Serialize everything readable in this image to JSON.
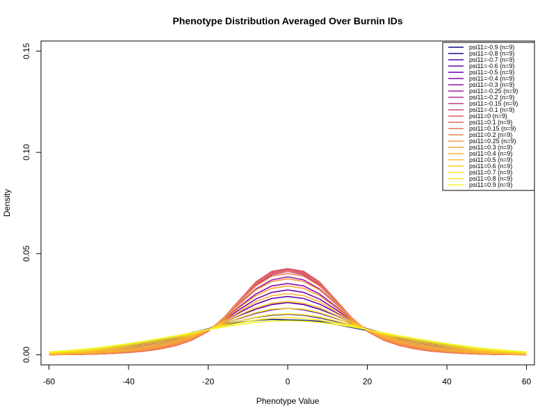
{
  "chart_data": {
    "type": "line",
    "title": "Phenotype Distribution Averaged Over Burnin IDs",
    "xlabel": "Phenotype Value",
    "ylabel": "Density",
    "xlim": [
      -62,
      62
    ],
    "ylim": [
      -0.005,
      0.155
    ],
    "xticks": [
      -60,
      -40,
      -20,
      0,
      20,
      40,
      60
    ],
    "xtick_labels": [
      "-60",
      "-40",
      "-20",
      "0",
      "20",
      "40",
      "60"
    ],
    "yticks": [
      0.0,
      0.05,
      0.1,
      0.15
    ],
    "ytick_labels": [
      "0.00",
      "0.05",
      "0.10",
      "0.15"
    ],
    "grid": false,
    "legend_position": "top-right",
    "x": [
      -60,
      -56,
      -52,
      -48,
      -44,
      -40,
      -36,
      -32,
      -28,
      -24,
      -20,
      -16,
      -12,
      -8,
      -4,
      0,
      4,
      8,
      12,
      16,
      20,
      24,
      28,
      32,
      36,
      40,
      44,
      48,
      52,
      56,
      60
    ],
    "series": [
      {
        "name": "psi11=-0.9 (n=9)",
        "color": "#0d0887",
        "values": [
          0.0012,
          0.0018,
          0.0022,
          0.003,
          0.004,
          0.0052,
          0.006,
          0.0075,
          0.009,
          0.011,
          0.0125,
          0.0145,
          0.016,
          0.017,
          0.0175,
          0.0172,
          0.017,
          0.0165,
          0.015,
          0.0135,
          0.012,
          0.0105,
          0.009,
          0.0075,
          0.0062,
          0.005,
          0.004,
          0.003,
          0.0022,
          0.0016,
          0.0012
        ]
      },
      {
        "name": "psi11=-0.8 (n=9)",
        "color": "#2c0594",
        "values": [
          0.001,
          0.0015,
          0.002,
          0.0028,
          0.0038,
          0.0048,
          0.0058,
          0.0072,
          0.0088,
          0.0108,
          0.0128,
          0.015,
          0.0168,
          0.0185,
          0.0195,
          0.02,
          0.0195,
          0.0182,
          0.0165,
          0.0148,
          0.0128,
          0.0108,
          0.009,
          0.0072,
          0.0058,
          0.0046,
          0.0036,
          0.0027,
          0.002,
          0.0014,
          0.001
        ]
      },
      {
        "name": "psi11=-0.7 (n=9)",
        "color": "#43039e",
        "values": [
          0.0008,
          0.0012,
          0.0017,
          0.0024,
          0.0033,
          0.0044,
          0.0055,
          0.0068,
          0.0084,
          0.0104,
          0.0128,
          0.0155,
          0.018,
          0.0205,
          0.0222,
          0.023,
          0.0222,
          0.0205,
          0.018,
          0.0155,
          0.0128,
          0.0104,
          0.0084,
          0.0068,
          0.0055,
          0.0044,
          0.0033,
          0.0024,
          0.0017,
          0.0012,
          0.0008
        ]
      },
      {
        "name": "psi11=-0.6 (n=9)",
        "color": "#5901a5",
        "values": [
          0.0006,
          0.001,
          0.0014,
          0.002,
          0.0028,
          0.0038,
          0.0049,
          0.0062,
          0.0078,
          0.01,
          0.0128,
          0.016,
          0.0195,
          0.0225,
          0.0248,
          0.0258,
          0.0248,
          0.0225,
          0.0195,
          0.016,
          0.0128,
          0.01,
          0.0078,
          0.0062,
          0.0049,
          0.0038,
          0.0028,
          0.002,
          0.0014,
          0.001,
          0.0006
        ]
      },
      {
        "name": "psi11=-0.5 (n=9)",
        "color": "#6a00a8",
        "values": [
          0.0004,
          0.0007,
          0.0011,
          0.0016,
          0.0023,
          0.0032,
          0.0042,
          0.0055,
          0.0072,
          0.0095,
          0.0125,
          0.0165,
          0.021,
          0.025,
          0.0278,
          0.0288,
          0.0278,
          0.025,
          0.021,
          0.0165,
          0.0125,
          0.0095,
          0.0072,
          0.0055,
          0.0042,
          0.0032,
          0.0023,
          0.0016,
          0.0011,
          0.0007,
          0.0004
        ]
      },
      {
        "name": "psi11=-0.4 (n=9)",
        "color": "#7e03a8",
        "values": [
          0.0003,
          0.0005,
          0.0008,
          0.0012,
          0.0018,
          0.0026,
          0.0036,
          0.0049,
          0.0066,
          0.009,
          0.0124,
          0.017,
          0.0225,
          0.0275,
          0.0308,
          0.032,
          0.0308,
          0.0275,
          0.0225,
          0.017,
          0.0124,
          0.009,
          0.0066,
          0.0049,
          0.0036,
          0.0026,
          0.0018,
          0.0012,
          0.0008,
          0.0005,
          0.0003
        ]
      },
      {
        "name": "psi11=-0.3 (n=9)",
        "color": "#8f0da4",
        "values": [
          0.0002,
          0.0003,
          0.0006,
          0.0009,
          0.0014,
          0.0021,
          0.003,
          0.0043,
          0.006,
          0.0085,
          0.0122,
          0.0175,
          0.024,
          0.03,
          0.034,
          0.0352,
          0.034,
          0.03,
          0.024,
          0.0175,
          0.0122,
          0.0085,
          0.006,
          0.0043,
          0.003,
          0.0021,
          0.0014,
          0.0009,
          0.0006,
          0.0003,
          0.0002
        ]
      },
      {
        "name": "psi11=-0.25 (n=9)",
        "color": "#a01a9c",
        "values": [
          0.0001,
          0.0002,
          0.0004,
          0.0007,
          0.0011,
          0.0017,
          0.0025,
          0.0037,
          0.0054,
          0.008,
          0.012,
          0.018,
          0.0255,
          0.0325,
          0.037,
          0.0385,
          0.037,
          0.0325,
          0.0255,
          0.018,
          0.012,
          0.008,
          0.0054,
          0.0037,
          0.0025,
          0.0017,
          0.0011,
          0.0007,
          0.0004,
          0.0002,
          0.0001
        ]
      },
      {
        "name": "psi11=-0.2 (n=9)",
        "color": "#b12a90",
        "values": [
          0.0001,
          0.0001,
          0.0003,
          0.0005,
          0.0009,
          0.0014,
          0.0021,
          0.0032,
          0.0049,
          0.0076,
          0.0118,
          0.0182,
          0.0265,
          0.0345,
          0.0395,
          0.0412,
          0.0395,
          0.0345,
          0.0265,
          0.0182,
          0.0118,
          0.0076,
          0.0049,
          0.0032,
          0.0021,
          0.0014,
          0.0009,
          0.0005,
          0.0003,
          0.0001,
          0.0001
        ]
      },
      {
        "name": "psi11=-0.15 (n=9)",
        "color": "#bf3984",
        "values": [
          0.0,
          0.0001,
          0.0002,
          0.0004,
          0.0007,
          0.0012,
          0.0019,
          0.003,
          0.0047,
          0.0074,
          0.0117,
          0.0183,
          0.027,
          0.0355,
          0.0405,
          0.042,
          0.0405,
          0.0355,
          0.027,
          0.0183,
          0.0117,
          0.0074,
          0.0047,
          0.003,
          0.0019,
          0.0012,
          0.0007,
          0.0004,
          0.0002,
          0.0001,
          0.0
        ]
      },
      {
        "name": "psi11=-0.1 (n=9)",
        "color": "#cc4778",
        "values": [
          0.0,
          0.0001,
          0.0002,
          0.0004,
          0.0007,
          0.0011,
          0.0018,
          0.0029,
          0.0046,
          0.0073,
          0.0116,
          0.0184,
          0.0272,
          0.0358,
          0.041,
          0.0425,
          0.041,
          0.0358,
          0.0272,
          0.0184,
          0.0116,
          0.0073,
          0.0046,
          0.0029,
          0.0018,
          0.0011,
          0.0007,
          0.0004,
          0.0002,
          0.0001,
          0.0
        ]
      },
      {
        "name": "psi11=0 (n=9)",
        "color": "#d8576b",
        "values": [
          0.0,
          0.0001,
          0.0002,
          0.0004,
          0.0007,
          0.0011,
          0.0018,
          0.0029,
          0.0046,
          0.0073,
          0.0116,
          0.0184,
          0.0272,
          0.036,
          0.0412,
          0.0426,
          0.0412,
          0.036,
          0.0272,
          0.0184,
          0.0116,
          0.0073,
          0.0046,
          0.0029,
          0.0018,
          0.0011,
          0.0007,
          0.0004,
          0.0002,
          0.0001,
          0.0
        ]
      },
      {
        "name": "psi11=0.1 (n=9)",
        "color": "#e16462",
        "values": [
          0.0,
          0.0001,
          0.0002,
          0.0004,
          0.0007,
          0.0011,
          0.0018,
          0.0029,
          0.0046,
          0.0073,
          0.0116,
          0.0184,
          0.027,
          0.0356,
          0.0408,
          0.0422,
          0.0408,
          0.0356,
          0.027,
          0.0184,
          0.0116,
          0.0073,
          0.0046,
          0.0029,
          0.0018,
          0.0011,
          0.0007,
          0.0004,
          0.0002,
          0.0001,
          0.0
        ]
      },
      {
        "name": "psi11=0.15 (n=9)",
        "color": "#ea7457",
        "values": [
          0.0,
          0.0001,
          0.0002,
          0.0004,
          0.0007,
          0.0012,
          0.0019,
          0.003,
          0.0047,
          0.0074,
          0.0117,
          0.0183,
          0.0268,
          0.035,
          0.04,
          0.0414,
          0.04,
          0.035,
          0.0268,
          0.0183,
          0.0117,
          0.0074,
          0.0047,
          0.003,
          0.0019,
          0.0012,
          0.0007,
          0.0004,
          0.0002,
          0.0001,
          0.0
        ]
      },
      {
        "name": "psi11=0.2 (n=9)",
        "color": "#f1844b",
        "values": [
          0.0001,
          0.0001,
          0.0003,
          0.0005,
          0.0009,
          0.0014,
          0.0021,
          0.0032,
          0.0049,
          0.0076,
          0.0118,
          0.0182,
          0.0262,
          0.034,
          0.0388,
          0.0402,
          0.0388,
          0.034,
          0.0262,
          0.0182,
          0.0118,
          0.0076,
          0.0049,
          0.0032,
          0.0021,
          0.0014,
          0.0009,
          0.0005,
          0.0003,
          0.0001,
          0.0001
        ]
      },
      {
        "name": "psi11=0.25 (n=9)",
        "color": "#f89540",
        "values": [
          0.0001,
          0.0002,
          0.0004,
          0.0007,
          0.0011,
          0.0017,
          0.0025,
          0.0037,
          0.0054,
          0.008,
          0.012,
          0.018,
          0.0252,
          0.032,
          0.0362,
          0.0375,
          0.0362,
          0.032,
          0.0252,
          0.018,
          0.012,
          0.008,
          0.0054,
          0.0037,
          0.0025,
          0.0017,
          0.0011,
          0.0007,
          0.0004,
          0.0002,
          0.0001
        ]
      },
      {
        "name": "psi11=0.3 (n=9)",
        "color": "#fca636",
        "values": [
          0.0002,
          0.0003,
          0.0006,
          0.0009,
          0.0014,
          0.0021,
          0.003,
          0.0043,
          0.006,
          0.0085,
          0.0122,
          0.0172,
          0.0235,
          0.0292,
          0.0328,
          0.034,
          0.0328,
          0.0292,
          0.0235,
          0.0172,
          0.0122,
          0.0085,
          0.006,
          0.0043,
          0.003,
          0.0021,
          0.0014,
          0.0009,
          0.0006,
          0.0003,
          0.0002
        ]
      },
      {
        "name": "psi11=0.4 (n=9)",
        "color": "#fdb42f",
        "values": [
          0.0003,
          0.0005,
          0.0008,
          0.0012,
          0.0018,
          0.0026,
          0.0036,
          0.0049,
          0.0066,
          0.009,
          0.0124,
          0.0165,
          0.0215,
          0.0262,
          0.0292,
          0.0302,
          0.0292,
          0.0262,
          0.0215,
          0.0165,
          0.0124,
          0.009,
          0.0066,
          0.0049,
          0.0036,
          0.0026,
          0.0018,
          0.0012,
          0.0008,
          0.0005,
          0.0003
        ]
      },
      {
        "name": "psi11=0.5 (n=9)",
        "color": "#fec029",
        "values": [
          0.0005,
          0.0008,
          0.0012,
          0.0017,
          0.0024,
          0.0033,
          0.0043,
          0.0056,
          0.0073,
          0.0096,
          0.0125,
          0.016,
          0.0198,
          0.0232,
          0.0255,
          0.0262,
          0.0255,
          0.0232,
          0.0198,
          0.016,
          0.0125,
          0.0096,
          0.0073,
          0.0056,
          0.0043,
          0.0033,
          0.0024,
          0.0017,
          0.0012,
          0.0008,
          0.0005
        ]
      },
      {
        "name": "psi11=0.6 (n=9)",
        "color": "#fcce25",
        "values": [
          0.0007,
          0.0011,
          0.0016,
          0.0022,
          0.003,
          0.004,
          0.0051,
          0.0064,
          0.008,
          0.0101,
          0.0126,
          0.0153,
          0.0182,
          0.0208,
          0.0225,
          0.023,
          0.0225,
          0.0208,
          0.0182,
          0.0153,
          0.0126,
          0.0101,
          0.008,
          0.0064,
          0.0051,
          0.004,
          0.003,
          0.0022,
          0.0016,
          0.0011,
          0.0007
        ]
      },
      {
        "name": "psi11=0.7 (n=9)",
        "color": "#f9dc24",
        "values": [
          0.001,
          0.0014,
          0.002,
          0.0027,
          0.0036,
          0.0046,
          0.0058,
          0.0071,
          0.0087,
          0.0105,
          0.0126,
          0.0147,
          0.0168,
          0.0186,
          0.0198,
          0.0202,
          0.0198,
          0.0186,
          0.0168,
          0.0147,
          0.0126,
          0.0105,
          0.0087,
          0.0071,
          0.0058,
          0.0046,
          0.0036,
          0.0027,
          0.002,
          0.0014,
          0.001
        ]
      },
      {
        "name": "psi11=0.8 (n=9)",
        "color": "#f5e726",
        "values": [
          0.0012,
          0.0017,
          0.0023,
          0.0031,
          0.0041,
          0.0052,
          0.0064,
          0.0077,
          0.0092,
          0.0108,
          0.0125,
          0.0142,
          0.0158,
          0.0171,
          0.018,
          0.0183,
          0.018,
          0.0171,
          0.0158,
          0.0142,
          0.0125,
          0.0108,
          0.0092,
          0.0077,
          0.0064,
          0.0052,
          0.0041,
          0.0031,
          0.0023,
          0.0017,
          0.0012
        ]
      },
      {
        "name": "psi11=0.9 (n=9)",
        "color": "#f0f921",
        "values": [
          0.0014,
          0.002,
          0.0026,
          0.0034,
          0.0044,
          0.0055,
          0.0067,
          0.008,
          0.0094,
          0.0109,
          0.0124,
          0.0138,
          0.015,
          0.016,
          0.0166,
          0.0168,
          0.0166,
          0.016,
          0.015,
          0.0138,
          0.0124,
          0.0109,
          0.0094,
          0.008,
          0.0067,
          0.0055,
          0.0044,
          0.0034,
          0.0026,
          0.002,
          0.0014
        ]
      }
    ]
  }
}
